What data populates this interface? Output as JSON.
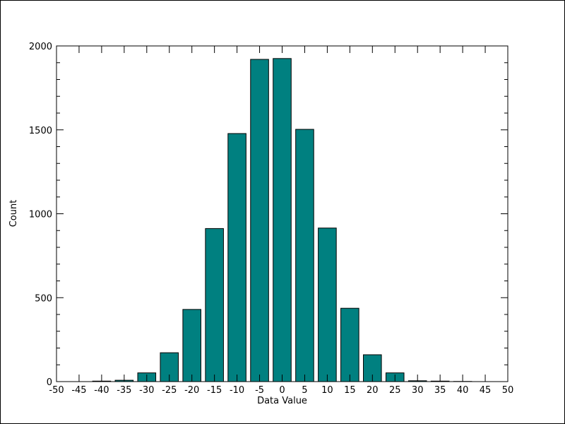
{
  "chart_data": {
    "type": "bar",
    "title": "",
    "xlabel": "Data Value",
    "ylabel": "Count",
    "xlim": [
      -50,
      50
    ],
    "ylim": [
      0,
      2000
    ],
    "bar_color": "#008080",
    "bar_edge_color": "#000000",
    "x_ticks": [
      "-50",
      "-45",
      "-40",
      "-35",
      "-30",
      "-25",
      "-20",
      "-15",
      "-10",
      "-5",
      "0",
      "5",
      "10",
      "15",
      "20",
      "25",
      "30",
      "35",
      "40",
      "45",
      "50"
    ],
    "y_ticks": [
      "0",
      "500",
      "1000",
      "1500",
      "2000"
    ],
    "bin_width": 5,
    "bin_centers": [
      -40,
      -35,
      -30,
      -25,
      -20,
      -15,
      -10,
      -5,
      0,
      5,
      10,
      15,
      20,
      25,
      30,
      35,
      40
    ],
    "values": [
      3,
      8,
      52,
      172,
      430,
      912,
      1478,
      1920,
      1925,
      1503,
      915,
      437,
      160,
      52,
      5,
      3,
      1
    ]
  }
}
